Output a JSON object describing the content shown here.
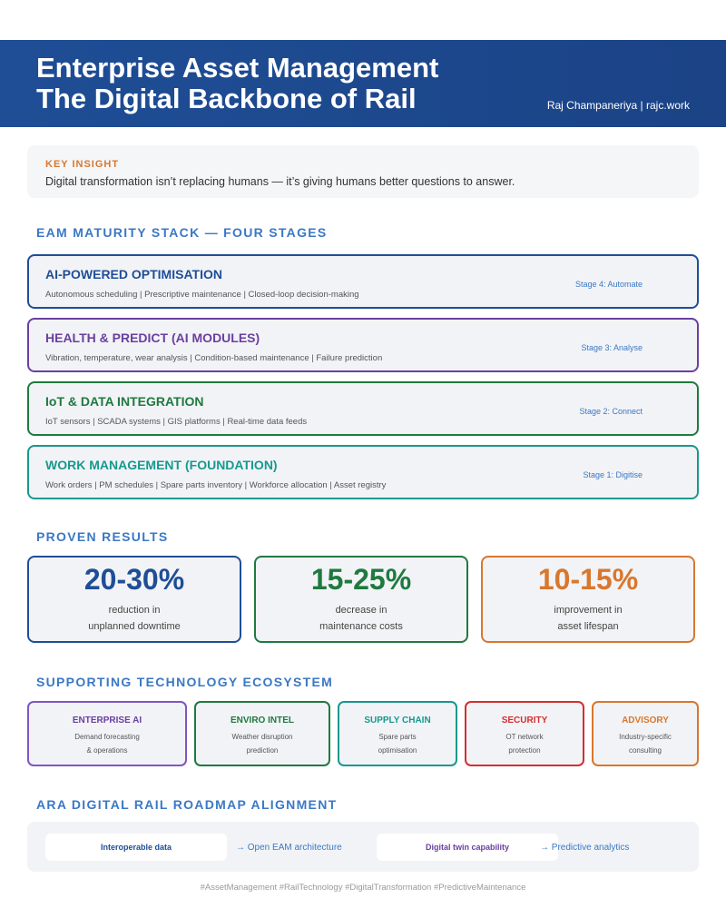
{
  "header": {
    "title_line1": "Enterprise Asset Management",
    "title_line2": "The Digital Backbone of Rail",
    "author": "Raj Champaneriya | rajc.work"
  },
  "insight": {
    "label": "KEY INSIGHT",
    "text": "Digital transformation isn’t replacing humans — it’s giving humans better questions to answer."
  },
  "stack": {
    "heading": "EAM MATURITY STACK — FOUR STAGES",
    "stages": [
      {
        "title": "AI-POWERED OPTIMISATION",
        "desc": "Autonomous scheduling | Prescriptive maintenance | Closed-loop decision-making",
        "stage": "Stage 4: Automate"
      },
      {
        "title": "HEALTH & PREDICT (AI MODULES)",
        "desc": "Vibration, temperature, wear analysis | Condition-based maintenance | Failure prediction",
        "stage": "Stage 3: Analyse"
      },
      {
        "title": "IoT & DATA INTEGRATION",
        "desc": "IoT sensors | SCADA systems | GIS platforms | Real-time data feeds",
        "stage": "Stage 2: Connect"
      },
      {
        "title": "WORK MANAGEMENT (FOUNDATION)",
        "desc": "Work orders | PM schedules | Spare parts inventory | Workforce allocation | Asset registry",
        "stage": "Stage 1: Digitise"
      }
    ]
  },
  "results": {
    "heading": "PROVEN RESULTS",
    "items": [
      {
        "value": "20-30%",
        "line1": "reduction in",
        "line2": "unplanned downtime"
      },
      {
        "value": "15-25%",
        "line1": "decrease in",
        "line2": "maintenance costs"
      },
      {
        "value": "10-15%",
        "line1": "improvement in",
        "line2": "asset lifespan"
      }
    ]
  },
  "ecosystem": {
    "heading": "SUPPORTING TECHNOLOGY ECOSYSTEM",
    "items": [
      {
        "title": "ENTERPRISE AI",
        "line1": "Demand forecasting",
        "line2": "& operations"
      },
      {
        "title": "ENVIRO INTEL",
        "line1": "Weather disruption",
        "line2": "prediction"
      },
      {
        "title": "SUPPLY CHAIN",
        "line1": "Spare parts",
        "line2": "optimisation"
      },
      {
        "title": "SECURITY",
        "line1": "OT network",
        "line2": "protection"
      },
      {
        "title": "ADVISORY",
        "line1": "Industry-specific",
        "line2": "consulting"
      }
    ]
  },
  "roadmap": {
    "heading": "ARA DIGITAL RAIL ROADMAP ALIGNMENT",
    "items": [
      {
        "label": "Interoperable data",
        "arrow": "→ Open EAM architecture"
      },
      {
        "label": "Digital twin capability",
        "arrow": "→ Predictive analytics"
      }
    ]
  },
  "footer": {
    "text": "#AssetManagement #RailTechnology #DigitalTransformation #PredictiveMaintenance"
  }
}
